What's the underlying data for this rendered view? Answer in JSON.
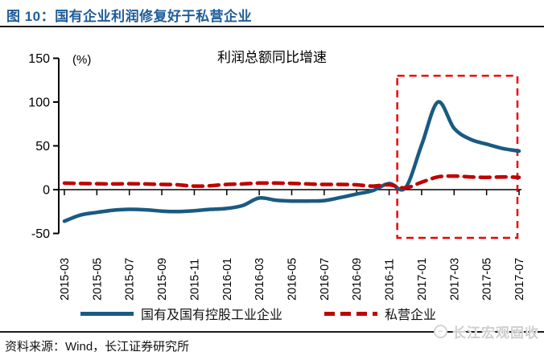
{
  "header": {
    "title": "图 10：国有企业利润修复好于私营企业"
  },
  "legend": {
    "items": [
      {
        "label": "国有及国有控股工业企业",
        "color": "#1A5A82",
        "style": "solid"
      },
      {
        "label": "私营企业",
        "color": "#C00000",
        "style": "dashed"
      }
    ]
  },
  "footer": {
    "source": "资料来源：Wind，长江证券研究所",
    "watermark": "长江宏观固收"
  },
  "chart_data": {
    "type": "line",
    "title": "利润总额同比增速",
    "unit_label": "(%)",
    "ylim": [
      -50,
      150
    ],
    "yticks": [
      150,
      100,
      50,
      0,
      -50
    ],
    "grid": false,
    "legend_position": "bottom",
    "x_label_rotation": -90,
    "x_tick_every": 2,
    "categories": [
      "2015-03",
      "2015-04",
      "2015-05",
      "2015-06",
      "2015-07",
      "2015-08",
      "2015-09",
      "2015-10",
      "2015-11",
      "2015-12",
      "2016-01",
      "2016-02",
      "2016-03",
      "2016-04",
      "2016-05",
      "2016-06",
      "2016-07",
      "2016-08",
      "2016-09",
      "2016-10",
      "2016-11",
      "2016-12",
      "2017-01",
      "2017-02",
      "2017-03",
      "2017-04",
      "2017-05",
      "2017-06",
      "2017-07"
    ],
    "series": [
      {
        "name": "国有及国有控股工业企业",
        "color": "#1A5A82",
        "style": "solid",
        "values": [
          -36,
          -29,
          -26,
          -23.5,
          -22.5,
          -23,
          -24.5,
          -25,
          -24,
          -22.5,
          -21.5,
          -18,
          -9.5,
          -12,
          -13,
          -13,
          -12.5,
          -9,
          -5,
          -1,
          7,
          2,
          51,
          100,
          70,
          57.5,
          52,
          47,
          44
        ]
      },
      {
        "name": "私营企业",
        "color": "#C00000",
        "style": "dashed",
        "values": [
          7.5,
          7,
          6.8,
          6.5,
          6.8,
          6.5,
          6,
          5.5,
          4,
          4.5,
          6,
          6.5,
          7.5,
          7.5,
          7.2,
          6.5,
          6,
          6,
          5.5,
          4,
          5.5,
          2,
          8.5,
          14.5,
          15.5,
          14.5,
          14,
          14.5,
          14
        ]
      }
    ],
    "annotations": {
      "highlight_box": {
        "color": "#EE0000",
        "x_from_index": 20.5,
        "x_to_index": 27.9,
        "y_min": -55,
        "y_max": 130
      }
    }
  }
}
